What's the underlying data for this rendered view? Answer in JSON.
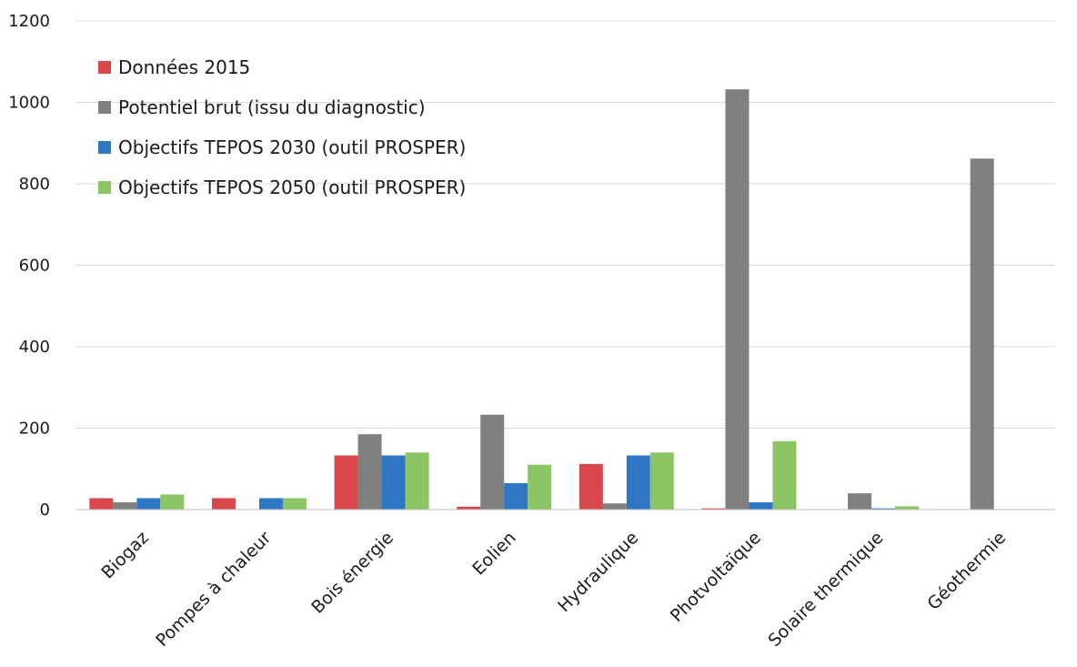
{
  "chart_data": {
    "type": "bar",
    "title": "",
    "xlabel": "",
    "ylabel": "",
    "ylim": [
      0,
      1200
    ],
    "yticks": [
      0,
      200,
      400,
      600,
      800,
      1000,
      1200
    ],
    "grid": true,
    "legend_position": "top-left",
    "categories": [
      "Biogaz",
      "Pompes à chaleur",
      "Bois énergie",
      "Eolien",
      "Hydraulique",
      "Photvoltaïque",
      "Solaire thermique",
      "Géothermie"
    ],
    "series": [
      {
        "name": "Données 2015",
        "color": "#d9474b",
        "values": [
          28,
          28,
          133,
          7,
          112,
          3,
          0,
          0
        ]
      },
      {
        "name": "Potentiel brut (issu du diagnostic)",
        "color": "#808080",
        "values": [
          18,
          0,
          185,
          233,
          15,
          1032,
          40,
          862
        ]
      },
      {
        "name": "Objectifs TEPOS 2030 (outil PROSPER)",
        "color": "#2f77c4",
        "values": [
          28,
          28,
          133,
          65,
          133,
          18,
          3,
          0
        ]
      },
      {
        "name": "Objectifs TEPOS 2050 (outil PROSPER)",
        "color": "#8cc563",
        "values": [
          37,
          28,
          140,
          110,
          140,
          168,
          8,
          0
        ]
      }
    ]
  }
}
